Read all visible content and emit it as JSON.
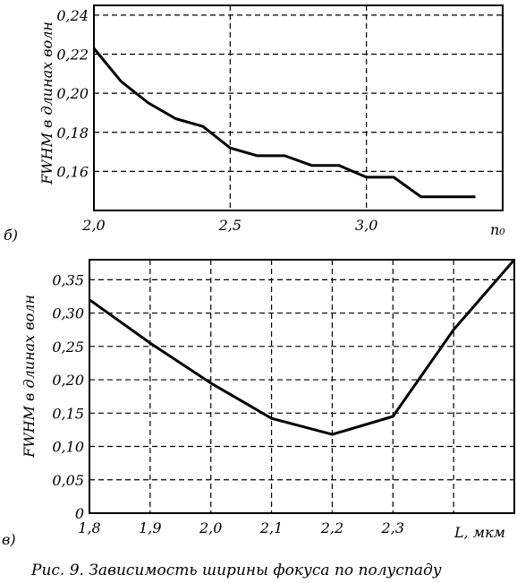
{
  "caption": "Рис. 9. Зависимость ширины фокуса по полуспаду",
  "chart_data": [
    {
      "type": "line",
      "panel_label": "б)",
      "xlabel": "n₀",
      "ylabel": "FWHM в длинах волн",
      "xlim": [
        2.0,
        3.5
      ],
      "ylim": [
        0.14,
        0.245
      ],
      "x_ticks": [
        2.0,
        2.5,
        3.0
      ],
      "x_tick_labels": [
        "2,0",
        "2,5",
        "3,0"
      ],
      "y_ticks": [
        0.16,
        0.18,
        0.2,
        0.22,
        0.24
      ],
      "y_tick_labels": [
        "0,16",
        "0,18",
        "0,20",
        "0,22",
        "0,24"
      ],
      "grid": true,
      "series": [
        {
          "x": [
            2.0,
            2.1,
            2.2,
            2.3,
            2.4,
            2.5,
            2.6,
            2.7,
            2.8,
            2.9,
            3.0,
            3.1,
            3.2,
            3.3,
            3.4
          ],
          "y": [
            0.223,
            0.206,
            0.195,
            0.187,
            0.183,
            0.172,
            0.168,
            0.168,
            0.163,
            0.163,
            0.157,
            0.157,
            0.147,
            0.147,
            0.147
          ]
        }
      ]
    },
    {
      "type": "line",
      "panel_label": "в)",
      "xlabel": "L, мкм",
      "ylabel": "FWHM в длинах волн",
      "xlim": [
        1.8,
        2.5
      ],
      "ylim": [
        0,
        0.38
      ],
      "x_ticks": [
        1.8,
        1.9,
        2.0,
        2.1,
        2.2,
        2.3
      ],
      "x_tick_labels": [
        "1,8",
        "1,9",
        "2,0",
        "2,1",
        "2,2",
        "2,3"
      ],
      "y_ticks": [
        0,
        0.05,
        0.1,
        0.15,
        0.2,
        0.25,
        0.3,
        0.35
      ],
      "y_tick_labels": [
        "0",
        "0,05",
        "0,10",
        "0,15",
        "0,20",
        "0,25",
        "0,30",
        "0,35"
      ],
      "grid": true,
      "series": [
        {
          "x": [
            1.8,
            1.9,
            2.0,
            2.1,
            2.2,
            2.3,
            2.4,
            2.5
          ],
          "y": [
            0.32,
            0.255,
            0.195,
            0.142,
            0.118,
            0.145,
            0.275,
            0.38
          ]
        }
      ]
    }
  ]
}
